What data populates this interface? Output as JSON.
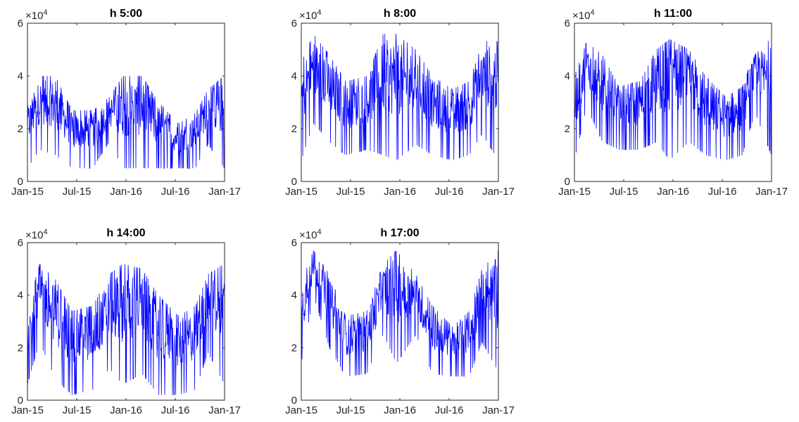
{
  "chart_data": [
    {
      "type": "line",
      "title": "h 5:00",
      "xlabel": "",
      "ylabel": "",
      "exponent_label": "10^4",
      "x_ticks": [
        "Jan-15",
        "Jul-15",
        "Jan-16",
        "Jul-16",
        "Jan-17"
      ],
      "y_ticks": [
        "0",
        "2",
        "4",
        "6"
      ],
      "ylim": [
        0,
        60000
      ],
      "xlim": [
        "2015-01-01",
        "2017-01-01"
      ],
      "grid": false,
      "series": [
        {
          "color": "#0000ff",
          "envelope": [
            {
              "x": "2015-01-01",
              "high": 30000,
              "low": 5000
            },
            {
              "x": "2015-02-15",
              "high": 40000,
              "low": 12000
            },
            {
              "x": "2015-04-15",
              "high": 40000,
              "low": 10000
            },
            {
              "x": "2015-06-15",
              "high": 27000,
              "low": 5000
            },
            {
              "x": "2015-09-01",
              "high": 27000,
              "low": 5000
            },
            {
              "x": "2015-11-01",
              "high": 32000,
              "low": 15000
            },
            {
              "x": "2015-12-20",
              "high": 40000,
              "low": 5000
            },
            {
              "x": "2016-03-01",
              "high": 40000,
              "low": 5000
            },
            {
              "x": "2016-05-01",
              "high": 30000,
              "low": 5000
            },
            {
              "x": "2016-07-15",
              "high": 22000,
              "low": 5000
            },
            {
              "x": "2016-09-15",
              "high": 26000,
              "low": 5000
            },
            {
              "x": "2016-11-01",
              "high": 35000,
              "low": 14000
            },
            {
              "x": "2016-12-31",
              "high": 40000,
              "low": 5000
            }
          ]
        }
      ]
    },
    {
      "type": "line",
      "title": "h 8:00",
      "xlabel": "",
      "ylabel": "",
      "exponent_label": "10^4",
      "x_ticks": [
        "Jan-15",
        "Jul-15",
        "Jan-16",
        "Jul-16",
        "Jan-17"
      ],
      "y_ticks": [
        "0",
        "2",
        "4",
        "6"
      ],
      "ylim": [
        0,
        60000
      ],
      "xlim": [
        "2015-01-01",
        "2017-01-01"
      ],
      "grid": false,
      "series": [
        {
          "color": "#0000ff",
          "envelope": [
            {
              "x": "2015-01-01",
              "high": 45000,
              "low": 8000
            },
            {
              "x": "2015-02-15",
              "high": 56000,
              "low": 22000
            },
            {
              "x": "2015-04-15",
              "high": 48000,
              "low": 15000
            },
            {
              "x": "2015-06-15",
              "high": 38000,
              "low": 10000
            },
            {
              "x": "2015-09-01",
              "high": 40000,
              "low": 12000
            },
            {
              "x": "2015-11-01",
              "high": 56000,
              "low": 10000
            },
            {
              "x": "2015-12-20",
              "high": 56000,
              "low": 8000
            },
            {
              "x": "2016-03-01",
              "high": 50000,
              "low": 14000
            },
            {
              "x": "2016-05-01",
              "high": 40000,
              "low": 10000
            },
            {
              "x": "2016-07-15",
              "high": 35000,
              "low": 8000
            },
            {
              "x": "2016-09-15",
              "high": 38000,
              "low": 10000
            },
            {
              "x": "2016-11-01",
              "high": 52000,
              "low": 18000
            },
            {
              "x": "2016-12-31",
              "high": 56000,
              "low": 8000
            }
          ]
        }
      ]
    },
    {
      "type": "line",
      "title": "h 11:00",
      "xlabel": "",
      "ylabel": "",
      "exponent_label": "10^4",
      "x_ticks": [
        "Jan-15",
        "Jul-15",
        "Jan-16",
        "Jul-16",
        "Jan-17"
      ],
      "y_ticks": [
        "0",
        "2",
        "4",
        "6"
      ],
      "ylim": [
        0,
        60000
      ],
      "xlim": [
        "2015-01-01",
        "2017-01-01"
      ],
      "grid": false,
      "series": [
        {
          "color": "#0000ff",
          "envelope": [
            {
              "x": "2015-01-01",
              "high": 40000,
              "low": 8000
            },
            {
              "x": "2015-02-15",
              "high": 53000,
              "low": 28000
            },
            {
              "x": "2015-04-15",
              "high": 48000,
              "low": 15000
            },
            {
              "x": "2015-06-15",
              "high": 36000,
              "low": 12000
            },
            {
              "x": "2015-09-01",
              "high": 38000,
              "low": 12000
            },
            {
              "x": "2015-11-01",
              "high": 50000,
              "low": 15000
            },
            {
              "x": "2015-12-20",
              "high": 54000,
              "low": 8000
            },
            {
              "x": "2016-03-01",
              "high": 50000,
              "low": 15000
            },
            {
              "x": "2016-05-01",
              "high": 40000,
              "low": 10000
            },
            {
              "x": "2016-07-15",
              "high": 32000,
              "low": 8000
            },
            {
              "x": "2016-09-15",
              "high": 36000,
              "low": 10000
            },
            {
              "x": "2016-11-01",
              "high": 50000,
              "low": 26000
            },
            {
              "x": "2016-12-31",
              "high": 54000,
              "low": 10000
            }
          ]
        }
      ]
    },
    {
      "type": "line",
      "title": "h 14:00",
      "xlabel": "",
      "ylabel": "",
      "exponent_label": "10^4",
      "x_ticks": [
        "Jan-15",
        "Jul-15",
        "Jan-16",
        "Jul-16",
        "Jan-17"
      ],
      "y_ticks": [
        "0",
        "2",
        "4",
        "6"
      ],
      "ylim": [
        0,
        60000
      ],
      "xlim": [
        "2015-01-01",
        "2017-01-01"
      ],
      "grid": false,
      "series": [
        {
          "color": "#0000ff",
          "envelope": [
            {
              "x": "2015-01-01",
              "high": 35000,
              "low": 6000
            },
            {
              "x": "2015-02-15",
              "high": 52000,
              "low": 22000
            },
            {
              "x": "2015-04-15",
              "high": 46000,
              "low": 8000
            },
            {
              "x": "2015-06-15",
              "high": 34000,
              "low": 2000
            },
            {
              "x": "2015-09-01",
              "high": 36000,
              "low": 4000
            },
            {
              "x": "2015-11-01",
              "high": 48000,
              "low": 12000
            },
            {
              "x": "2015-12-20",
              "high": 52000,
              "low": 6000
            },
            {
              "x": "2016-03-01",
              "high": 50000,
              "low": 10000
            },
            {
              "x": "2016-05-01",
              "high": 40000,
              "low": 2000
            },
            {
              "x": "2016-07-15",
              "high": 32000,
              "low": 2000
            },
            {
              "x": "2016-09-15",
              "high": 36000,
              "low": 4000
            },
            {
              "x": "2016-11-01",
              "high": 48000,
              "low": 18000
            },
            {
              "x": "2016-12-31",
              "high": 52000,
              "low": 6000
            }
          ]
        }
      ]
    },
    {
      "type": "line",
      "title": "h 17:00",
      "xlabel": "",
      "ylabel": "",
      "exponent_label": "10^4",
      "x_ticks": [
        "Jan-15",
        "Jul-15",
        "Jan-16",
        "Jul-16",
        "Jan-17"
      ],
      "y_ticks": [
        "0",
        "2",
        "4",
        "6"
      ],
      "ylim": [
        0,
        60000
      ],
      "xlim": [
        "2015-01-01",
        "2017-01-01"
      ],
      "grid": false,
      "series": [
        {
          "color": "#0000ff",
          "envelope": [
            {
              "x": "2015-01-01",
              "high": 45000,
              "low": 14000
            },
            {
              "x": "2015-02-15",
              "high": 57000,
              "low": 40000
            },
            {
              "x": "2015-04-15",
              "high": 48000,
              "low": 20000
            },
            {
              "x": "2015-06-15",
              "high": 32000,
              "low": 9000
            },
            {
              "x": "2015-09-01",
              "high": 34000,
              "low": 10000
            },
            {
              "x": "2015-11-01",
              "high": 52000,
              "low": 25000
            },
            {
              "x": "2015-12-20",
              "high": 57000,
              "low": 14000
            },
            {
              "x": "2016-03-01",
              "high": 48000,
              "low": 25000
            },
            {
              "x": "2016-05-01",
              "high": 36000,
              "low": 10000
            },
            {
              "x": "2016-07-15",
              "high": 28000,
              "low": 9000
            },
            {
              "x": "2016-09-15",
              "high": 34000,
              "low": 9000
            },
            {
              "x": "2016-11-01",
              "high": 50000,
              "low": 22000
            },
            {
              "x": "2016-12-31",
              "high": 57000,
              "low": 11000
            }
          ]
        }
      ]
    }
  ]
}
